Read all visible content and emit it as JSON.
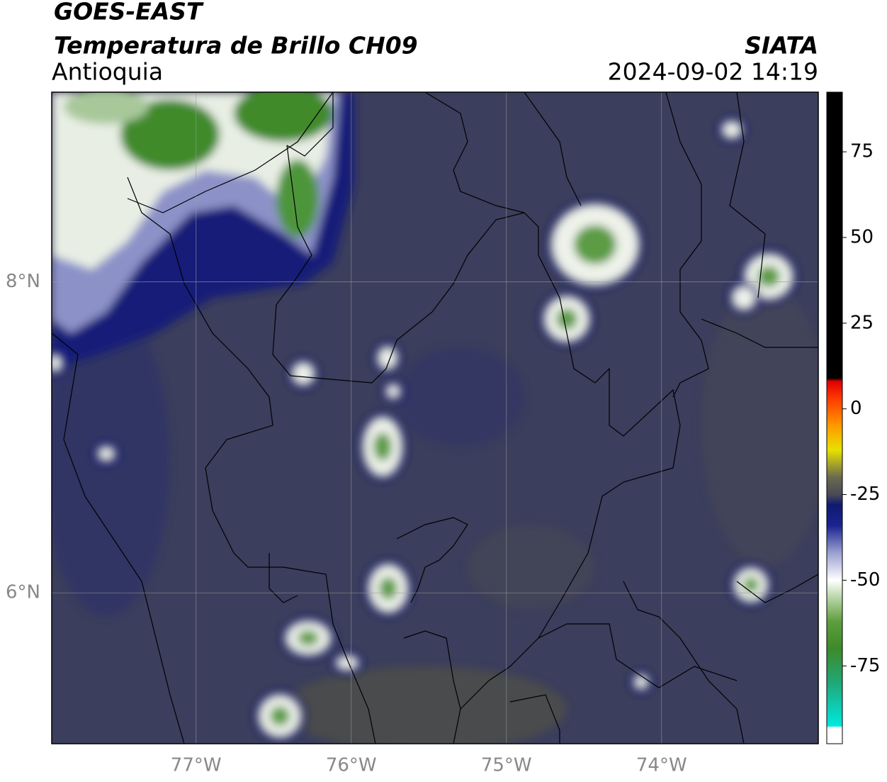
{
  "header": {
    "title": "GOES-EAST",
    "subtitle": "Temperatura de Brillo CH09",
    "region": "Antioquia",
    "source": "SIATA",
    "datetime": "2024-09-02 14:19"
  },
  "map": {
    "xlim": [
      -77.93,
      -72.99
    ],
    "ylim": [
      5.03,
      9.22
    ],
    "xticks": [
      {
        "value": -77,
        "label": "77°W"
      },
      {
        "value": -76,
        "label": "76°W"
      },
      {
        "value": -75,
        "label": "75°W"
      },
      {
        "value": -74,
        "label": "74°W"
      }
    ],
    "yticks": [
      {
        "value": 6,
        "label": "6°N"
      },
      {
        "value": 8,
        "label": "8°N"
      }
    ],
    "grid": true
  },
  "colorbar": {
    "ylim": [
      -97.7,
      92.4
    ],
    "yticks": [
      -75,
      -50,
      -25,
      0,
      25,
      50,
      75
    ],
    "colorscale": [
      {
        "value": -97.7,
        "color": "#ffffff"
      },
      {
        "value": -93,
        "color": "#ffffff"
      },
      {
        "value": -92.5,
        "color": "#00e8e0"
      },
      {
        "value": -80,
        "color": "#20a878"
      },
      {
        "value": -70,
        "color": "#3d8a2a"
      },
      {
        "value": -62,
        "color": "#5f9e3e"
      },
      {
        "value": -55,
        "color": "#b9d6a8"
      },
      {
        "value": -50,
        "color": "#ffffff"
      },
      {
        "value": -42,
        "color": "#9aa0d0"
      },
      {
        "value": -34,
        "color": "#1a2390"
      },
      {
        "value": -28,
        "color": "#101a70"
      },
      {
        "value": -25,
        "color": "#4a4a58"
      },
      {
        "value": -20,
        "color": "#6a6a50"
      },
      {
        "value": -12,
        "color": "#e6e200"
      },
      {
        "value": -5,
        "color": "#ff9a00"
      },
      {
        "value": 3,
        "color": "#ff3a00"
      },
      {
        "value": 8,
        "color": "#e00000"
      },
      {
        "value": 9,
        "color": "#000000"
      },
      {
        "value": 92.4,
        "color": "#000000"
      }
    ]
  }
}
